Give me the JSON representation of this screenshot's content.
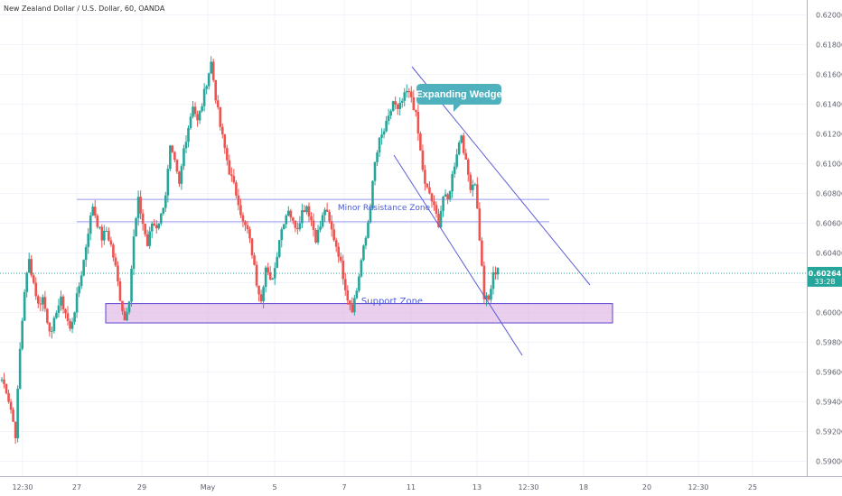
{
  "title": "New Zealand Dollar / U.S. Dollar, 60, OANDA",
  "chart_data": {
    "type": "candlestick",
    "symbol": "NZDUSD",
    "interval": "60",
    "broker": "OANDA",
    "ylim": [
      0.589,
      0.621
    ],
    "y_ticks": [
      "0.62000",
      "0.61800",
      "0.61600",
      "0.61400",
      "0.61200",
      "0.61000",
      "0.60800",
      "0.60600",
      "0.60400",
      "0.60200",
      "0.60000",
      "0.59800",
      "0.59600",
      "0.59400",
      "0.59200",
      "0.59000"
    ],
    "x_ticks": [
      "12:30",
      "27",
      "29",
      "May",
      "5",
      "7",
      "11",
      "13",
      "12:30",
      "18",
      "20",
      "12:30",
      "25"
    ],
    "last_price": "0.60264",
    "countdown": "33:28",
    "annotations": {
      "expanding_wedge": "Expanding Wedge",
      "minor_resistance": "Minor Resistance Zone",
      "support_zone": "Support Zone"
    },
    "zones": {
      "minor_resistance": [
        0.6061,
        0.6076
      ],
      "support": [
        0.5993,
        0.6006
      ]
    },
    "price_path": [
      0.5955,
      0.5948,
      0.5935,
      0.5918,
      0.5975,
      0.6015,
      0.6035,
      0.602,
      0.6005,
      0.601,
      0.5995,
      0.5985,
      0.6002,
      0.6008,
      0.6,
      0.5988,
      0.6002,
      0.6018,
      0.6035,
      0.6055,
      0.6072,
      0.606,
      0.605,
      0.6055,
      0.6045,
      0.603,
      0.601,
      0.5995,
      0.601,
      0.605,
      0.6075,
      0.606,
      0.6045,
      0.606,
      0.6058,
      0.6065,
      0.608,
      0.611,
      0.61,
      0.6085,
      0.611,
      0.6125,
      0.614,
      0.6128,
      0.614,
      0.6155,
      0.6168,
      0.6145,
      0.6125,
      0.611,
      0.6095,
      0.6085,
      0.6075,
      0.606,
      0.6055,
      0.604,
      0.602,
      0.601,
      0.603,
      0.602,
      0.603,
      0.605,
      0.6062,
      0.607,
      0.606,
      0.6058,
      0.6068,
      0.6072,
      0.6062,
      0.605,
      0.6058,
      0.607,
      0.606,
      0.605,
      0.604,
      0.6025,
      0.601,
      0.6003,
      0.6015,
      0.6035,
      0.605,
      0.6072,
      0.61,
      0.6115,
      0.6122,
      0.613,
      0.6142,
      0.6135,
      0.6142,
      0.6148,
      0.6145,
      0.6132,
      0.6108,
      0.6085,
      0.608,
      0.607,
      0.606,
      0.6078,
      0.6075,
      0.6092,
      0.6108,
      0.612,
      0.61,
      0.6085,
      0.6088,
      0.605,
      0.601,
      0.6008,
      0.6025,
      0.603
    ]
  }
}
